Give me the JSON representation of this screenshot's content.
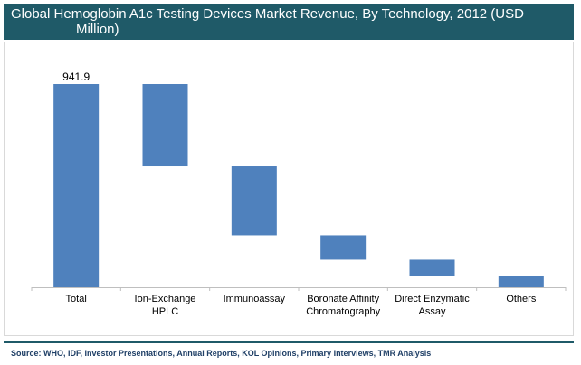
{
  "title": {
    "line1": "Global Hemoglobin A1c Testing Devices Market Revenue, By Technology, 2012 (USD",
    "line2": "Million)"
  },
  "source": "Source: WHO, IDF, Investor Presentations, Annual Reports, KOL Opinions, Primary Interviews, TMR Analysis",
  "colors": {
    "bar": "#4f81bd",
    "title_bg": "#1f5a68",
    "axis": "#bfbfbf"
  },
  "chart_data": {
    "type": "bar",
    "subtype": "waterfall",
    "title": "Global Hemoglobin A1c Testing Devices Market Revenue, By Technology, 2012 (USD Million)",
    "categories": [
      [
        "Total"
      ],
      [
        "Ion-Exchange",
        "HPLC"
      ],
      [
        "Immunoassay"
      ],
      [
        "Boronate Affinity",
        "Chromatography"
      ],
      [
        "Direct Enzymatic",
        "Assay"
      ],
      [
        "Others"
      ]
    ],
    "values": [
      941.9,
      381.0,
      320.0,
      113.0,
      74.0,
      53.9
    ],
    "data_labels": [
      "941.9",
      "",
      "",
      "",
      "",
      ""
    ],
    "ylim": [
      0,
      941.9
    ],
    "grid": false,
    "legend": "none"
  }
}
